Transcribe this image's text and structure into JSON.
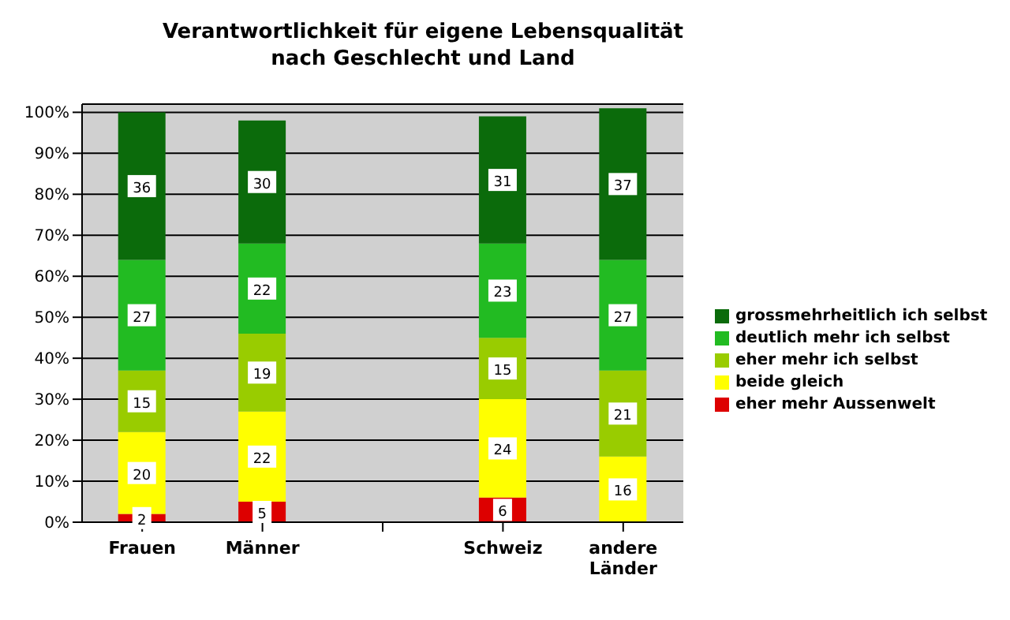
{
  "chart_data": {
    "type": "bar",
    "title": "Verantwortlichkeit für eigene Lebensqualität\nnach Geschlecht und Land",
    "categories": [
      "Frauen",
      "Männer",
      null,
      "Schweiz",
      "andere Länder"
    ],
    "stacked": true,
    "data_labels": true,
    "grid": "y",
    "legend": "right",
    "ylim": [
      0,
      102
    ],
    "yticks": [
      {
        "value": 0,
        "label": "0%"
      },
      {
        "value": 10,
        "label": "10%"
      },
      {
        "value": 20,
        "label": "20%"
      },
      {
        "value": 30,
        "label": "30%"
      },
      {
        "value": 40,
        "label": "40%"
      },
      {
        "value": 50,
        "label": "50%"
      },
      {
        "value": 60,
        "label": "60%"
      },
      {
        "value": 70,
        "label": "70%"
      },
      {
        "value": 80,
        "label": "80%"
      },
      {
        "value": 90,
        "label": "90%"
      },
      {
        "value": 100,
        "label": "100%"
      }
    ],
    "series": [
      {
        "name": "eher mehr Aussenwelt",
        "color": "#dd0000",
        "values": [
          2,
          5,
          null,
          6,
          null
        ]
      },
      {
        "name": "beide gleich",
        "color": "#ffff00",
        "values": [
          20,
          22,
          null,
          24,
          16
        ]
      },
      {
        "name": "eher mehr ich selbst",
        "color": "#99cc00",
        "values": [
          15,
          19,
          null,
          15,
          21
        ]
      },
      {
        "name": "deutlich mehr ich selbst",
        "color": "#22bb22",
        "values": [
          27,
          22,
          null,
          23,
          27
        ]
      },
      {
        "name": "grossmehrheitlich ich selbst",
        "color": "#0b6b0b",
        "values": [
          36,
          30,
          null,
          31,
          37
        ]
      }
    ]
  }
}
